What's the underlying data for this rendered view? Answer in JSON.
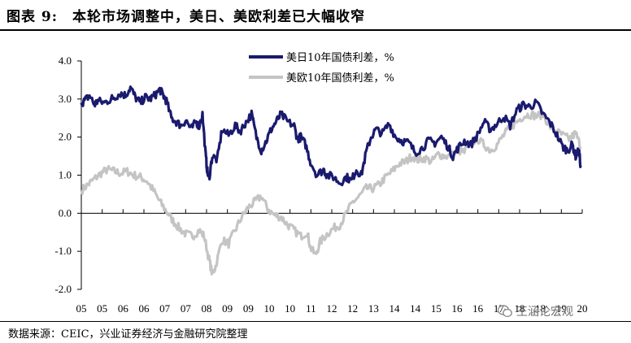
{
  "header": {
    "title": "图表 9:　本轮市场调整中，美日、美欧利差已大幅收窄"
  },
  "footer": {
    "source": "数据来源：CEIC，兴业证券经济与金融研究院整理"
  },
  "watermark": {
    "text": "王涵论宏观",
    "icon": "wechat-icon"
  },
  "chart_data": {
    "type": "line",
    "title": "",
    "xlabel": "",
    "ylabel": "",
    "ylim": [
      -2.0,
      4.0
    ],
    "yticks": [
      "4.0",
      "3.0",
      "2.0",
      "1.0",
      "0.0",
      "-1.0",
      "-2.0"
    ],
    "xlim": [
      2005.0,
      2020.3
    ],
    "xticks": [
      "05",
      "05",
      "06",
      "06",
      "07",
      "07",
      "08",
      "09",
      "09",
      "10",
      "10",
      "11",
      "12",
      "12",
      "13",
      "14",
      "14",
      "15",
      "16",
      "16",
      "17",
      "18",
      "18",
      "19",
      "20"
    ],
    "grid": false,
    "legend_position": "top-center",
    "colors": {
      "us_jp": "#1a1a6e",
      "us_eu": "#c4c4c4"
    },
    "series": [
      {
        "name": "美日10年国债利差，%",
        "color": "#1a1a6e",
        "x": [
          2005.0,
          2005.1,
          2005.25,
          2005.4,
          2005.5,
          2005.7,
          2005.9,
          2006.0,
          2006.2,
          2006.35,
          2006.5,
          2006.65,
          2006.8,
          2006.95,
          2007.1,
          2007.25,
          2007.4,
          2007.5,
          2007.6,
          2007.75,
          2007.9,
          2008.05,
          2008.2,
          2008.35,
          2008.5,
          2008.6,
          2008.7,
          2008.8,
          2008.85,
          2008.9,
          2009.0,
          2009.15,
          2009.3,
          2009.5,
          2009.7,
          2009.85,
          2010.0,
          2010.2,
          2010.35,
          2010.5,
          2010.65,
          2010.8,
          2010.95,
          2011.1,
          2011.3,
          2011.5,
          2011.6,
          2011.7,
          2011.85,
          2012.0,
          2012.2,
          2012.4,
          2012.5,
          2012.7,
          2012.9,
          2013.1,
          2013.25,
          2013.4,
          2013.55,
          2013.7,
          2013.85,
          2014.0,
          2014.2,
          2014.4,
          2014.6,
          2014.8,
          2015.0,
          2015.2,
          2015.4,
          2015.6,
          2015.8,
          2016.0,
          2016.2,
          2016.35,
          2016.5,
          2016.7,
          2016.9,
          2017.1,
          2017.3,
          2017.5,
          2017.7,
          2017.9,
          2018.1,
          2018.3,
          2018.5,
          2018.7,
          2018.9,
          2019.1,
          2019.3,
          2019.5,
          2019.7,
          2019.85,
          2020.0,
          2020.1,
          2020.2,
          2020.25
        ],
        "values": [
          2.9,
          2.95,
          3.1,
          2.85,
          2.95,
          2.9,
          3.0,
          3.05,
          3.15,
          3.1,
          3.3,
          3.05,
          2.9,
          3.05,
          3.0,
          3.1,
          3.25,
          3.1,
          2.95,
          2.5,
          2.4,
          2.3,
          2.45,
          2.2,
          2.4,
          2.3,
          2.6,
          1.5,
          1.1,
          0.9,
          1.5,
          1.4,
          2.2,
          2.05,
          2.3,
          2.15,
          2.35,
          2.6,
          2.0,
          1.65,
          1.9,
          2.2,
          2.4,
          2.6,
          2.4,
          2.3,
          1.95,
          2.0,
          1.8,
          1.35,
          1.0,
          1.15,
          1.0,
          0.95,
          0.8,
          0.95,
          0.85,
          1.15,
          1.0,
          1.6,
          2.0,
          2.2,
          2.1,
          2.35,
          2.0,
          1.9,
          1.85,
          1.6,
          1.7,
          1.9,
          1.85,
          2.0,
          1.75,
          1.5,
          1.7,
          1.9,
          1.8,
          2.05,
          2.4,
          2.2,
          2.35,
          2.55,
          2.3,
          2.7,
          2.85,
          2.8,
          2.9,
          2.6,
          2.4,
          2.1,
          1.75,
          1.65,
          1.8,
          1.5,
          1.65,
          1.25
        ]
      },
      {
        "name": "美欧10年国债利差，%",
        "color": "#c4c4c4",
        "x": [
          2005.0,
          2005.2,
          2005.4,
          2005.6,
          2005.8,
          2006.0,
          2006.2,
          2006.4,
          2006.6,
          2006.8,
          2007.0,
          2007.2,
          2007.4,
          2007.6,
          2007.8,
          2008.0,
          2008.2,
          2008.4,
          2008.6,
          2008.75,
          2008.9,
          2009.0,
          2009.1,
          2009.3,
          2009.5,
          2009.7,
          2009.9,
          2010.1,
          2010.3,
          2010.5,
          2010.7,
          2010.9,
          2011.1,
          2011.3,
          2011.5,
          2011.7,
          2011.9,
          2012.0,
          2012.15,
          2012.3,
          2012.5,
          2012.7,
          2012.9,
          2013.1,
          2013.3,
          2013.5,
          2013.7,
          2013.9,
          2014.1,
          2014.3,
          2014.5,
          2014.7,
          2014.9,
          2015.1,
          2015.3,
          2015.5,
          2015.7,
          2015.9,
          2016.1,
          2016.3,
          2016.5,
          2016.7,
          2016.9,
          2017.1,
          2017.3,
          2017.5,
          2017.7,
          2017.9,
          2018.1,
          2018.3,
          2018.5,
          2018.7,
          2018.9,
          2019.1,
          2019.3,
          2019.5,
          2019.7,
          2019.9,
          2020.1,
          2020.25
        ],
        "values": [
          0.6,
          0.75,
          0.9,
          1.05,
          1.15,
          1.1,
          1.05,
          1.1,
          1.0,
          0.95,
          0.85,
          0.6,
          0.3,
          0.05,
          -0.2,
          -0.4,
          -0.55,
          -0.6,
          -0.45,
          -0.6,
          -1.2,
          -1.6,
          -1.4,
          -0.7,
          -0.8,
          -0.45,
          -0.1,
          0.15,
          0.3,
          0.45,
          0.1,
          -0.05,
          -0.1,
          -0.3,
          -0.45,
          -0.6,
          -0.5,
          -0.9,
          -1.1,
          -0.75,
          -0.55,
          -0.4,
          -0.3,
          0.0,
          0.3,
          0.45,
          0.65,
          0.65,
          0.75,
          0.95,
          1.1,
          1.3,
          1.35,
          1.5,
          1.4,
          1.45,
          1.35,
          1.55,
          1.5,
          1.5,
          1.65,
          1.6,
          1.85,
          1.95,
          1.8,
          1.65,
          1.8,
          2.05,
          2.25,
          2.4,
          2.55,
          2.6,
          2.55,
          2.6,
          2.3,
          2.15,
          2.05,
          1.95,
          2.1,
          1.75
        ]
      }
    ]
  }
}
